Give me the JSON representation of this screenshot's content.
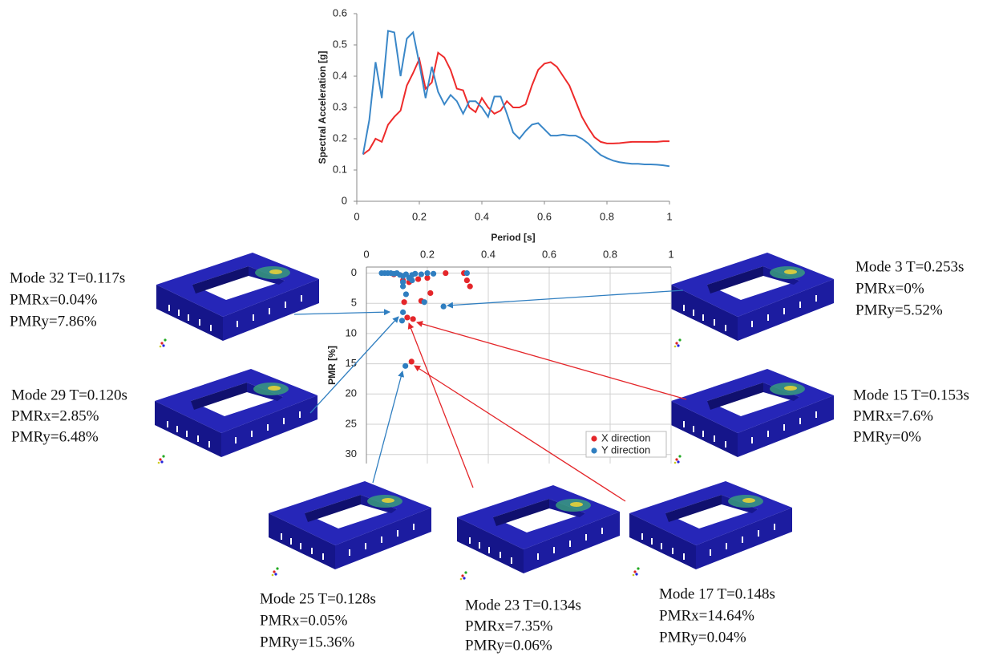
{
  "chart_data": [
    {
      "type": "line",
      "xlabel": "Period [s]",
      "ylabel": "Spectral Acceleration [g]",
      "x": [
        0.02,
        0.04,
        0.06,
        0.08,
        0.1,
        0.12,
        0.14,
        0.16,
        0.18,
        0.2,
        0.22,
        0.24,
        0.26,
        0.28,
        0.3,
        0.32,
        0.34,
        0.36,
        0.38,
        0.4,
        0.42,
        0.44,
        0.46,
        0.48,
        0.5,
        0.52,
        0.54,
        0.56,
        0.58,
        0.6,
        0.62,
        0.64,
        0.66,
        0.68,
        0.7,
        0.72,
        0.74,
        0.76,
        0.78,
        0.8,
        0.82,
        0.84,
        0.86,
        0.88,
        0.9,
        0.92,
        0.94,
        0.96,
        0.98,
        1
      ],
      "series": [
        {
          "color": "#ee2b2b",
          "values": [
            0.15,
            0.165,
            0.2,
            0.19,
            0.245,
            0.27,
            0.29,
            0.37,
            0.41,
            0.455,
            0.36,
            0.38,
            0.475,
            0.46,
            0.42,
            0.36,
            0.355,
            0.3,
            0.285,
            0.33,
            0.3,
            0.28,
            0.29,
            0.32,
            0.3,
            0.3,
            0.31,
            0.37,
            0.42,
            0.44,
            0.445,
            0.43,
            0.4,
            0.37,
            0.32,
            0.27,
            0.235,
            0.205,
            0.19,
            0.185,
            0.185,
            0.186,
            0.188,
            0.19,
            0.19,
            0.19,
            0.19,
            0.19,
            0.192,
            0.192
          ]
        },
        {
          "color": "#3a87c8",
          "values": [
            0.15,
            0.26,
            0.445,
            0.33,
            0.545,
            0.54,
            0.4,
            0.52,
            0.54,
            0.44,
            0.33,
            0.43,
            0.35,
            0.31,
            0.34,
            0.32,
            0.28,
            0.32,
            0.32,
            0.3,
            0.27,
            0.335,
            0.335,
            0.28,
            0.22,
            0.2,
            0.225,
            0.245,
            0.25,
            0.23,
            0.21,
            0.21,
            0.213,
            0.21,
            0.21,
            0.2,
            0.185,
            0.165,
            0.148,
            0.138,
            0.13,
            0.125,
            0.122,
            0.12,
            0.12,
            0.118,
            0.118,
            0.117,
            0.115,
            0.112
          ]
        }
      ],
      "xlim": [
        0,
        1
      ],
      "xticks": [
        0,
        0.2,
        0.4,
        0.6,
        0.8,
        1
      ],
      "ylim": [
        0,
        0.6
      ],
      "yticks": [
        0,
        0.1,
        0.2,
        0.3,
        0.4,
        0.5,
        0.6
      ],
      "grid": false
    },
    {
      "type": "scatter",
      "ylabel": "PMR [%]",
      "xaxis": "top",
      "y_inverted": true,
      "grid": true,
      "legend": "lower right",
      "series": [
        {
          "name": "X direction",
          "color": "#e4262a",
          "x": [
            0.153,
            0.134,
            0.148,
            0.124,
            0.18,
            0.21,
            0.33,
            0.34,
            0.26,
            0.32,
            0.17,
            0.14,
            0.12,
            0.09,
            0.2
          ],
          "values": [
            7.6,
            7.35,
            14.64,
            4.8,
            4.6,
            3.3,
            1.2,
            2.2,
            0,
            0,
            1,
            1.5,
            1.2,
            0.2,
            0.8
          ]
        },
        {
          "name": "Y direction",
          "color": "#2f7ec0",
          "x": [
            0.253,
            0.117,
            0.12,
            0.128,
            0.05,
            0.06,
            0.07,
            0.08,
            0.09,
            0.1,
            0.11,
            0.12,
            0.13,
            0.14,
            0.15,
            0.16,
            0.18,
            0.2,
            0.22,
            0.12,
            0.13,
            0.12,
            0.19,
            0.15,
            0.33
          ],
          "values": [
            5.52,
            7.86,
            6.48,
            15.36,
            0,
            0,
            0,
            0,
            0.1,
            0,
            0.3,
            0.5,
            0.2,
            0.8,
            0.3,
            0.1,
            0.2,
            0,
            0.1,
            1.5,
            3.5,
            2.2,
            4.8,
            1.2,
            0
          ]
        }
      ],
      "xlim": [
        0,
        1
      ],
      "xticks": [
        0,
        0.2,
        0.4,
        0.6,
        0.8,
        1
      ],
      "ylim": [
        -1,
        31.5
      ],
      "yticks": [
        0,
        5,
        10,
        15,
        20,
        25,
        30
      ]
    }
  ],
  "modes": [
    {
      "title": "Mode 32 T=0.117s",
      "pmrx": "PMRx=0.04%",
      "pmry": "PMRy=7.86%"
    },
    {
      "title": "Mode 29 T=0.120s",
      "pmrx": "PMRx=2.85%",
      "pmry": "PMRy=6.48%"
    },
    {
      "title": "Mode 3 T=0.253s",
      "pmrx": "PMRx=0%",
      "pmry": "PMRy=5.52%"
    },
    {
      "title": "Mode 15 T=0.153s",
      "pmrx": "PMRx=7.6%",
      "pmry": "PMRy=0%"
    },
    {
      "title": "Mode 25 T=0.128s",
      "pmrx": "PMRx=0.05%",
      "pmry": "PMRy=15.36%"
    },
    {
      "title": "Mode 23 T=0.134s",
      "pmrx": "PMRx=7.35%",
      "pmry": "PMRy=0.06%"
    },
    {
      "title": "Mode 17 T=0.148s",
      "pmrx": "PMRx=14.64%",
      "pmry": "PMRy=0.04%"
    }
  ]
}
